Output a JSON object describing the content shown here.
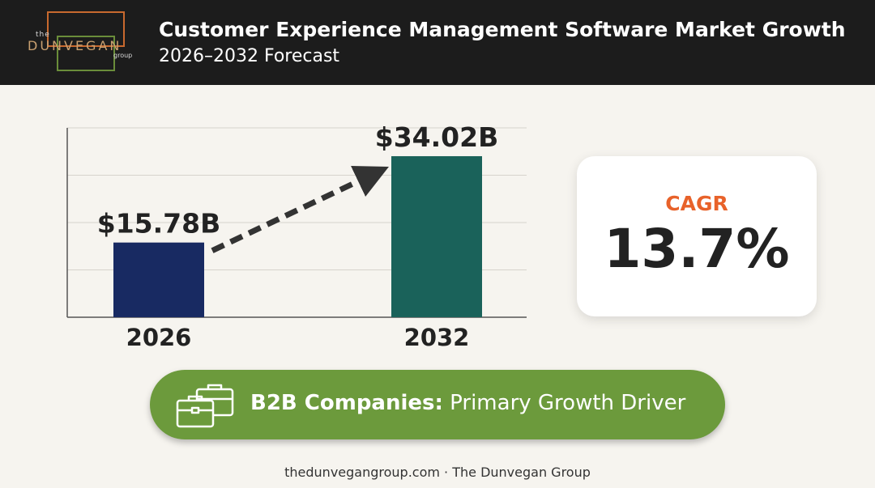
{
  "header": {
    "logo_text": "the DUNVEGAN group",
    "title": "Customer Experience Management Software Market Growth",
    "subtitle": "2026–2032 Forecast"
  },
  "chart_data": {
    "type": "bar",
    "categories": [
      "2026",
      "2032"
    ],
    "values": [
      15.78,
      34.02
    ],
    "data_labels": [
      "$15.78B",
      "$34.02B"
    ],
    "colors": [
      "#182a62",
      "#1a625a"
    ],
    "ylim": [
      0,
      40
    ],
    "grid": true,
    "annotation": "dashed growth arrow from 2026 to 2032"
  },
  "cagr": {
    "label": "CAGR",
    "value": "13.7%",
    "label_color": "#e8622a"
  },
  "driver": {
    "icon": "briefcase-icon",
    "bold": "B2B Companies:",
    "text": "Primary Growth Driver",
    "color": "#6c9a3c"
  },
  "footer": {
    "text": "thedunvegangroup.com · The Dunvegan Group"
  }
}
